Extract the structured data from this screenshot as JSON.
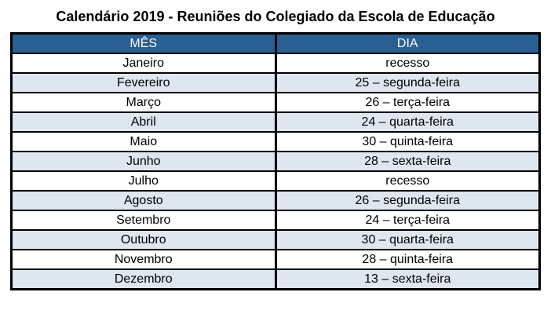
{
  "title": "Calendário 2019 - Reuniões do Colegiado da Escola de Educação",
  "table": {
    "headers": [
      "MÊS",
      "DIA"
    ],
    "rows": [
      {
        "mes": "Janeiro",
        "dia": "recesso"
      },
      {
        "mes": "Fevereiro",
        "dia": "25 – segunda-feira"
      },
      {
        "mes": "Março",
        "dia": "26 – terça-feira"
      },
      {
        "mes": "Abril",
        "dia": "24 – quarta-feira"
      },
      {
        "mes": "Maio",
        "dia": "30 – quinta-feira"
      },
      {
        "mes": "Junho",
        "dia": "28 – sexta-feira"
      },
      {
        "mes": "Julho",
        "dia": "recesso"
      },
      {
        "mes": "Agosto",
        "dia": "26 – segunda-feira"
      },
      {
        "mes": "Setembro",
        "dia": "24 – terça-feira"
      },
      {
        "mes": "Outubro",
        "dia": "30 – quarta-feira"
      },
      {
        "mes": "Novembro",
        "dia": "28 – quinta-feira"
      },
      {
        "mes": "Dezembro",
        "dia": "13 – sexta-feira"
      }
    ]
  },
  "colors": {
    "header_bg": "#2A5F94",
    "header_text": "#FFFFFF",
    "row_bg": "#FFFFFF",
    "row_alt_bg": "#DEE6F0",
    "border": "#000000",
    "title_text": "#000000"
  }
}
